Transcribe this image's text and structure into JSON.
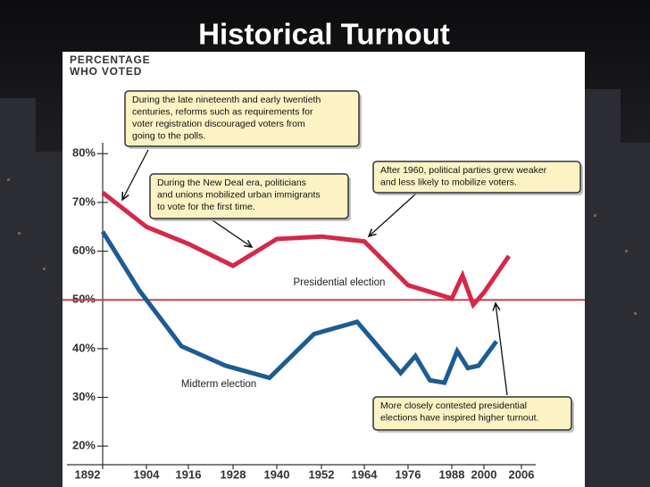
{
  "chart_data": {
    "type": "line",
    "title": "Historical Turnout",
    "y_label": [
      "PERCENTAGE",
      "WHO VOTED"
    ],
    "ylim": [
      16,
      100
    ],
    "yticks": [
      {
        "value": 20,
        "label": "20%"
      },
      {
        "value": 30,
        "label": "30%"
      },
      {
        "value": 40,
        "label": "40%"
      },
      {
        "value": 50,
        "label": "50%"
      },
      {
        "value": 60,
        "label": "60%"
      },
      {
        "value": 70,
        "label": "70%"
      },
      {
        "value": 80,
        "label": "80%"
      }
    ],
    "xticks": [
      1892,
      1904,
      1916,
      1928,
      1940,
      1952,
      1964,
      1976,
      1988,
      2000,
      2006
    ],
    "reference_line": {
      "value": 50,
      "color": "#c8414f"
    },
    "series": [
      {
        "name": "Presidential election",
        "color": "#d6284a",
        "x": [
          1892,
          1904,
          1916,
          1928,
          1940,
          1952,
          1964,
          1976,
          1988,
          1992,
          1996,
          2000,
          2004
        ],
        "values": [
          72,
          65,
          61.5,
          57,
          62.5,
          63,
          62,
          53,
          50.3,
          55,
          49,
          51.5,
          59
        ]
      },
      {
        "name": "Midterm election",
        "color": "#1d5c93",
        "x": [
          1892,
          1902,
          1914,
          1926,
          1938,
          1950,
          1962,
          1974,
          1978,
          1982,
          1986,
          1990,
          1994,
          1998,
          2002
        ],
        "values": [
          64,
          52,
          40.5,
          36.5,
          34,
          43,
          45.5,
          35,
          38.5,
          33.5,
          33,
          39.5,
          36,
          36.5,
          41.5
        ]
      }
    ],
    "annotations": [
      [
        "During the late nineteenth and early twentieth",
        "centuries, reforms such as requirements for",
        "voter registration discouraged voters from",
        "going to the polls."
      ],
      [
        "During the New Deal era, politicians",
        "and unions mobilized urban immigrants",
        "to vote for the first time."
      ],
      [
        "After 1960, political parties grew weaker",
        "and less likely to mobilize voters."
      ],
      [
        "More closely contested presidential",
        "elections have inspired higher turnout."
      ]
    ]
  }
}
